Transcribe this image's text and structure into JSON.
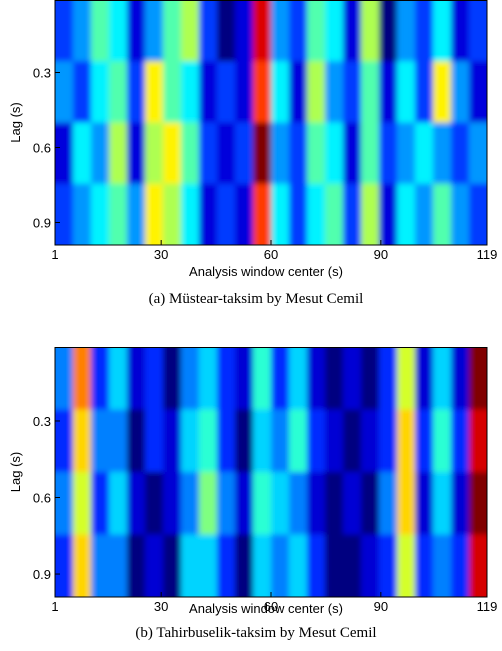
{
  "chart_data": [
    {
      "type": "heatmap",
      "caption": "(a) Müstear-taksim by Mesut Cemil",
      "x_label": "Analysis window center (s)",
      "y_label": "Lag (s)",
      "xlim": [
        1,
        119
      ],
      "ylim": [
        0.01,
        0.99
      ],
      "xticks": [
        1,
        30,
        60,
        90,
        119
      ],
      "yticks": [
        {
          "value": 0.3,
          "label": "0.3"
        },
        {
          "value": 0.6,
          "label": "0.6"
        },
        {
          "value": 0.9,
          "label": "0.9"
        }
      ],
      "z": [
        [
          0.35,
          0.4,
          0.5,
          0.45,
          0.3,
          0.4,
          0.5,
          0.55,
          0.35,
          0.25,
          0.3,
          0.75,
          0.4,
          0.35,
          0.5,
          0.45,
          0.3,
          0.55,
          0.25,
          0.4,
          0.35,
          0.45,
          0.3,
          0.35
        ],
        [
          0.4,
          0.35,
          0.45,
          0.5,
          0.35,
          0.6,
          0.5,
          0.45,
          0.3,
          0.35,
          0.3,
          0.7,
          0.45,
          0.3,
          0.55,
          0.4,
          0.35,
          0.5,
          0.3,
          0.45,
          0.35,
          0.6,
          0.4,
          0.3
        ],
        [
          0.3,
          0.45,
          0.4,
          0.55,
          0.3,
          0.55,
          0.6,
          0.5,
          0.35,
          0.3,
          0.35,
          0.8,
          0.4,
          0.35,
          0.5,
          0.45,
          0.3,
          0.5,
          0.35,
          0.4,
          0.45,
          0.4,
          0.35,
          0.4
        ],
        [
          0.35,
          0.4,
          0.45,
          0.5,
          0.4,
          0.6,
          0.55,
          0.45,
          0.3,
          0.35,
          0.3,
          0.7,
          0.45,
          0.35,
          0.45,
          0.5,
          0.35,
          0.55,
          0.3,
          0.45,
          0.4,
          0.5,
          0.4,
          0.35
        ]
      ]
    },
    {
      "type": "heatmap",
      "caption": "(b) Tahirbuselik-taksim by Mesut Cemil",
      "x_label": "Analysis window center (s)",
      "y_label": "Lag (s)",
      "xlim": [
        1,
        119
      ],
      "ylim": [
        0.01,
        0.99
      ],
      "xticks": [
        1,
        30,
        60,
        90,
        119
      ],
      "yticks": [
        {
          "value": 0.3,
          "label": "0.3"
        },
        {
          "value": 0.6,
          "label": "0.6"
        },
        {
          "value": 0.9,
          "label": "0.9"
        }
      ],
      "z": [
        [
          0.45,
          0.75,
          0.4,
          0.5,
          0.35,
          0.4,
          0.3,
          0.45,
          0.5,
          0.4,
          0.35,
          0.55,
          0.4,
          0.5,
          0.35,
          0.3,
          0.35,
          0.3,
          0.4,
          0.65,
          0.35,
          0.5,
          0.35,
          0.9
        ],
        [
          0.4,
          0.7,
          0.45,
          0.45,
          0.3,
          0.4,
          0.35,
          0.5,
          0.55,
          0.4,
          0.3,
          0.5,
          0.45,
          0.55,
          0.4,
          0.35,
          0.3,
          0.35,
          0.4,
          0.7,
          0.4,
          0.55,
          0.4,
          0.85
        ],
        [
          0.45,
          0.65,
          0.4,
          0.5,
          0.35,
          0.3,
          0.35,
          0.45,
          0.6,
          0.45,
          0.35,
          0.55,
          0.5,
          0.45,
          0.35,
          0.3,
          0.35,
          0.3,
          0.45,
          0.7,
          0.35,
          0.5,
          0.35,
          0.9
        ],
        [
          0.4,
          0.7,
          0.45,
          0.45,
          0.3,
          0.35,
          0.3,
          0.5,
          0.5,
          0.4,
          0.3,
          0.5,
          0.45,
          0.5,
          0.4,
          0.3,
          0.3,
          0.35,
          0.4,
          0.65,
          0.4,
          0.45,
          0.4,
          0.85
        ]
      ]
    }
  ]
}
